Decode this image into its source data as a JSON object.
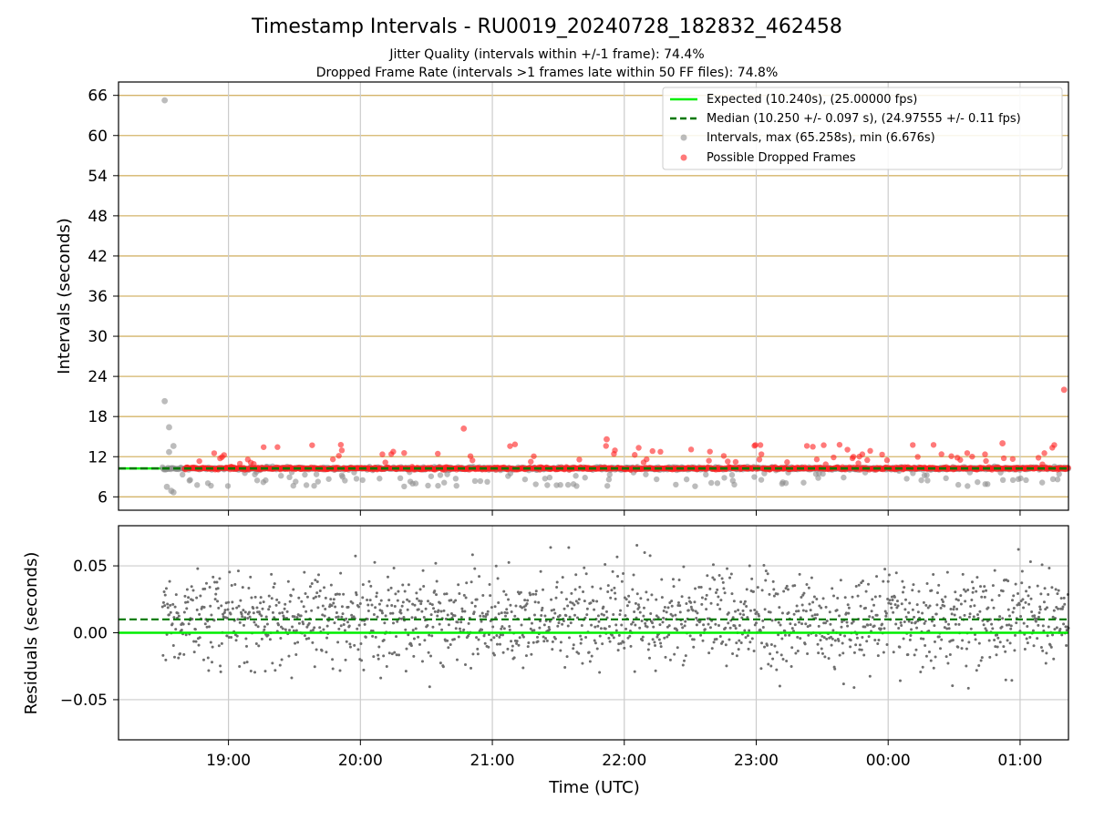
{
  "figure": {
    "title": "Timestamp Intervals - RU0019_20240728_182832_462458",
    "subtitle_1": "Jitter Quality (intervals within +/-1 frame): 74.4%",
    "subtitle_2": "Dropped Frame Rate (intervals >1 frames late within 50 FF files): 74.8%",
    "xlabel": "Time (UTC)"
  },
  "colors": {
    "expected": "#00ee00",
    "median": "#007700",
    "intervals": "#909090",
    "dropped": "#ff2020",
    "residual_points": "#6e6e6e",
    "major_grid": "#d4b46a",
    "grid": "#cccccc"
  },
  "chart_data": [
    {
      "type": "scatter",
      "panel": "intervals",
      "ylabel": "Intervals (seconds)",
      "xlim": [
        "18:10",
        "01:22"
      ],
      "ylim": [
        4,
        68
      ],
      "x_ticks": [
        "19:00",
        "20:00",
        "21:00",
        "22:00",
        "23:00",
        "00:00",
        "01:00"
      ],
      "y_ticks": [
        6,
        12,
        18,
        24,
        30,
        36,
        42,
        48,
        54,
        60,
        66
      ],
      "grid": true,
      "legend_position": "upper right",
      "legend": {
        "expected": "Expected (10.240s), (25.00000 fps)",
        "median": "Median (10.250 +/- 0.097 s), (24.97555 +/- 0.11 fps)",
        "intervals": "Intervals, max (65.258s), min (6.676s)",
        "dropped": "Possible Dropped Frames"
      },
      "expected_interval": 10.24,
      "median_interval": 10.25,
      "intervals_max": 65.258,
      "intervals_min": 6.676,
      "time_start": "18:30",
      "time_end": "01:22",
      "dropped_from": "18:40",
      "typical_interval": 10.25,
      "notable_points": [
        {
          "x": "18:31",
          "y": 65.258,
          "series": "intervals"
        },
        {
          "x": "18:31",
          "y": 20.3,
          "series": "intervals"
        },
        {
          "x": "18:33",
          "y": 16.4,
          "series": "intervals"
        },
        {
          "x": "18:33",
          "y": 12.7,
          "series": "intervals"
        },
        {
          "x": "18:35",
          "y": 13.6,
          "series": "intervals"
        },
        {
          "x": "18:32",
          "y": 7.5,
          "series": "intervals"
        },
        {
          "x": "18:34",
          "y": 6.9,
          "series": "intervals"
        },
        {
          "x": "18:35",
          "y": 6.676,
          "series": "intervals"
        },
        {
          "x": "20:47",
          "y": 16.2,
          "series": "dropped"
        },
        {
          "x": "21:52",
          "y": 14.6,
          "series": "dropped"
        },
        {
          "x": "00:52",
          "y": 14.0,
          "series": "dropped"
        },
        {
          "x": "01:20",
          "y": 22.0,
          "series": "dropped"
        }
      ]
    },
    {
      "type": "scatter",
      "panel": "residuals",
      "ylabel": "Residuals (seconds)",
      "ylim": [
        -0.08,
        0.08
      ],
      "y_ticks": [
        0.05,
        0.0,
        -0.05
      ],
      "y_tick_labels": [
        "0.05",
        "0.00",
        "−0.05"
      ],
      "grid": true,
      "expected_residual": 0.0,
      "median_residual": 0.01,
      "points_per_minute": 4,
      "residual_center": 0.01,
      "residual_spread": 0.025
    }
  ]
}
